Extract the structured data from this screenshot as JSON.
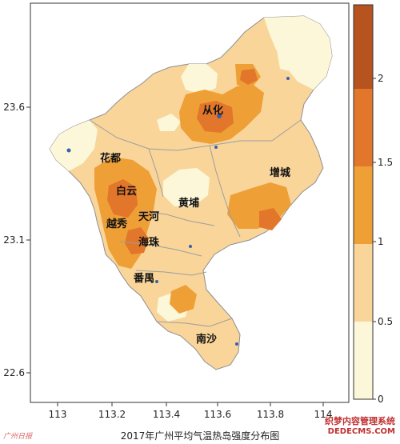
{
  "caption": "2017年广州平均气温热岛强度分布图",
  "watermark_left": "广州日报",
  "watermark_right": {
    "title": "织梦内容管理系统",
    "url": "DEDECMS.COM"
  },
  "map": {
    "x_ticks": [
      "113",
      "113.2",
      "113.4",
      "113.6",
      "113.8",
      "114"
    ],
    "y_ticks": [
      "23.6",
      "23.1",
      "22.6"
    ],
    "districts": [
      "从化",
      "花都",
      "增城",
      "白云",
      "黄埔",
      "天河",
      "越秀",
      "海珠",
      "番禺",
      "南沙"
    ]
  },
  "colorbar": {
    "ticks": [
      "2",
      "1.5",
      "1",
      "0.5",
      "0"
    ],
    "colors": [
      "#fbf7d8",
      "#f9d59a",
      "#ee9f36",
      "#e2762a",
      "#b6531e"
    ]
  },
  "palette": {
    "level0": "#fbf7d8",
    "level1": "#f9d59a",
    "level2": "#ee9f36",
    "level3": "#e2762a",
    "level4": "#b6531e",
    "boundary": "#9e9e9e"
  }
}
